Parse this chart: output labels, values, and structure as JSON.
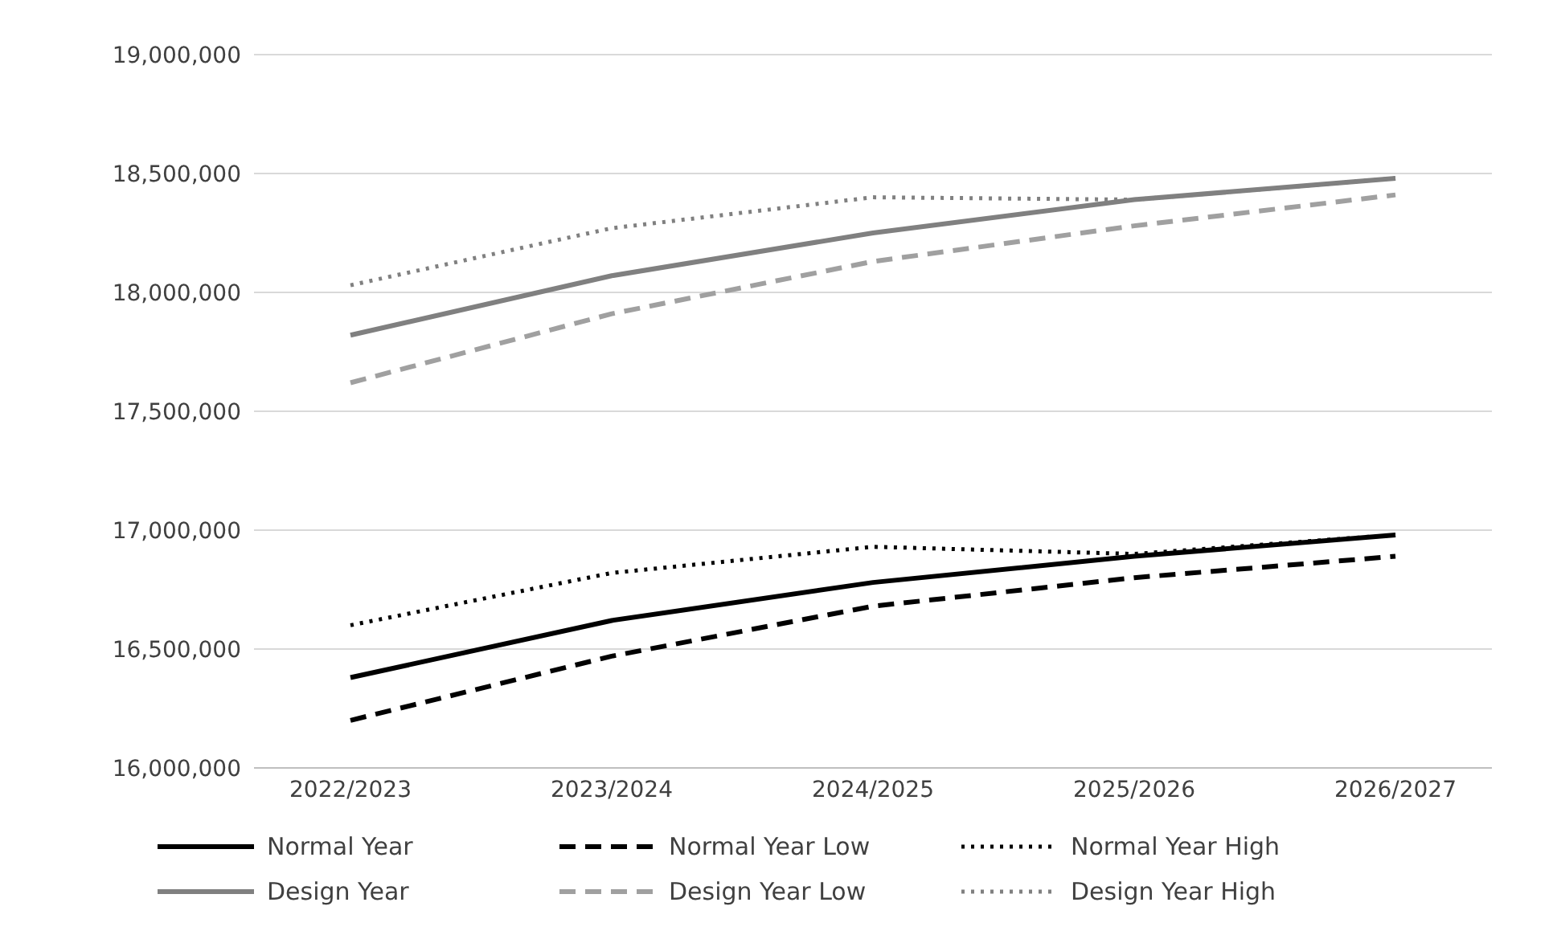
{
  "chart_data": {
    "type": "line",
    "categories": [
      "2022/2023",
      "2023/2024",
      "2024/2025",
      "2025/2026",
      "2026/2027"
    ],
    "ylim": [
      16000000,
      19000000
    ],
    "yticks": [
      {
        "value": 16000000,
        "label": "16,000,000"
      },
      {
        "value": 16500000,
        "label": "16,500,000"
      },
      {
        "value": 17000000,
        "label": "17,000,000"
      },
      {
        "value": 17500000,
        "label": "17,500,000"
      },
      {
        "value": 18000000,
        "label": "18,000,000"
      },
      {
        "value": 18500000,
        "label": "18,500,000"
      },
      {
        "value": 19000000,
        "label": "19,000,000"
      }
    ],
    "grid": "y",
    "legend": "bottom",
    "marker": "none",
    "series": [
      {
        "name": "Normal Year",
        "color": "#000000",
        "line_style": "solid",
        "values": [
          16380000,
          16620000,
          16780000,
          16890000,
          16980000
        ]
      },
      {
        "name": "Normal Year Low",
        "color": "#000000",
        "line_style": "dashed",
        "values": [
          16200000,
          16470000,
          16680000,
          16800000,
          16890000
        ]
      },
      {
        "name": "Normal Year High",
        "color": "#000000",
        "line_style": "dotted",
        "values": [
          16600000,
          16820000,
          16930000,
          16900000,
          16980000
        ]
      },
      {
        "name": "Design Year",
        "color": "#808080",
        "line_style": "solid",
        "values": [
          17820000,
          18070000,
          18250000,
          18390000,
          18480000
        ]
      },
      {
        "name": "Design Year Low",
        "color": "#a0a0a0",
        "line_style": "dashed",
        "values": [
          17620000,
          17910000,
          18130000,
          18280000,
          18410000
        ]
      },
      {
        "name": "Design Year High",
        "color": "#808080",
        "line_style": "dotted",
        "values": [
          18030000,
          18270000,
          18400000,
          18390000,
          18480000
        ]
      }
    ]
  }
}
